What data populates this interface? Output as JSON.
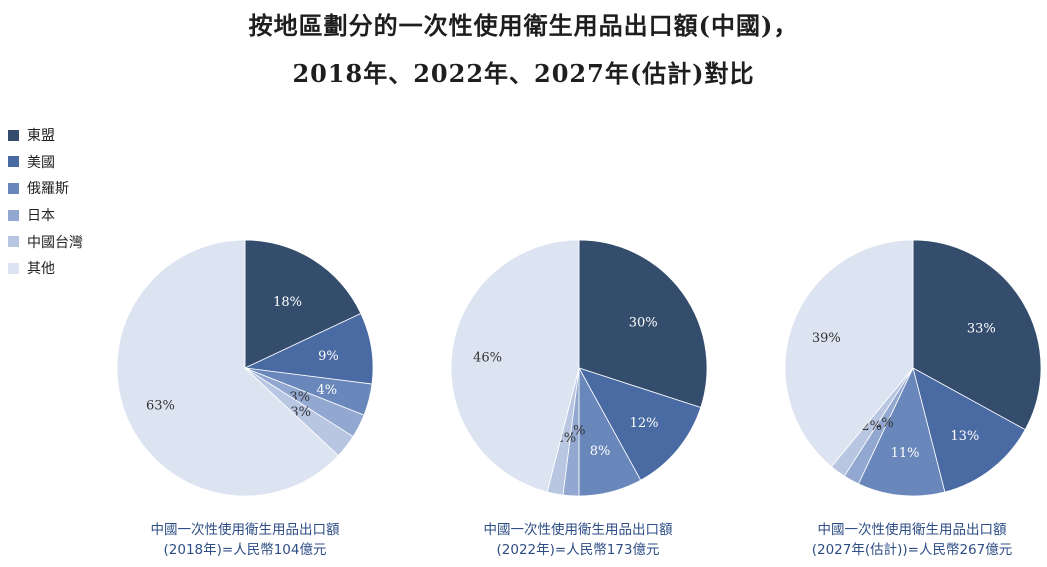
{
  "colors": {
    "東盟": "#344d6d",
    "美國": "#4a6aa3",
    "俄羅斯": "#6a87bb",
    "日本": "#93a8d0",
    "中國台灣": "#b9c6e2",
    "其他": "#dde4f1"
  },
  "chart_data": {
    "type": "pie",
    "title": "按地區劃分的一次性使用衛生用品出口額(中國)，",
    "subtitle": "2018年、2022年、2027年(估計)對比",
    "legend": [
      "東盟",
      "美國",
      "俄羅斯",
      "日本",
      "中國台灣",
      "其他"
    ],
    "legend_position": "left",
    "charts": [
      {
        "caption_line1": "中國一次性使用衛生用品出口額",
        "caption_line2": "(2018年)=人民幣104億元",
        "slices": [
          {
            "name": "東盟",
            "value": 18,
            "label": "18%"
          },
          {
            "name": "美國",
            "value": 9,
            "label": "9%"
          },
          {
            "name": "俄羅斯",
            "value": 4,
            "label": "4%"
          },
          {
            "name": "日本",
            "value": 3,
            "label": "3%"
          },
          {
            "name": "中國台灣",
            "value": 3,
            "label": "3%"
          },
          {
            "name": "其他",
            "value": 63,
            "label": "63%"
          }
        ]
      },
      {
        "caption_line1": "中國一次性使用衛生用品出口額",
        "caption_line2": "(2022年)=人民幣173億元",
        "slices": [
          {
            "name": "東盟",
            "value": 30,
            "label": "30%"
          },
          {
            "name": "美國",
            "value": 12,
            "label": "12%"
          },
          {
            "name": "俄羅斯",
            "value": 8,
            "label": "8%"
          },
          {
            "name": "日本",
            "value": 2,
            "label": "2%"
          },
          {
            "name": "中國台灣",
            "value": 2,
            "label": "2%"
          },
          {
            "name": "其他",
            "value": 46,
            "label": "46%"
          }
        ]
      },
      {
        "caption_line1": "中國一次性使用衛生用品出口額",
        "caption_line2": "(2027年(估計))=人民幣267億元",
        "slices": [
          {
            "name": "東盟",
            "value": 33,
            "label": "33%"
          },
          {
            "name": "美國",
            "value": 13,
            "label": "13%"
          },
          {
            "name": "俄羅斯",
            "value": 11,
            "label": "11%"
          },
          {
            "name": "日本",
            "value": 2,
            "label": "2%"
          },
          {
            "name": "中國台灣",
            "value": 2,
            "label": "2%"
          },
          {
            "name": "其他",
            "value": 39,
            "label": "39%"
          }
        ]
      }
    ]
  }
}
